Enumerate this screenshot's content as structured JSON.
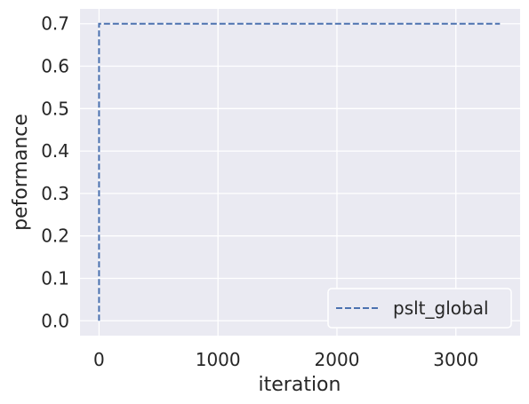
{
  "chart_data": {
    "type": "line",
    "xlabel": "iteration",
    "ylabel": "peformance",
    "xlim": [
      -160,
      3540
    ],
    "ylim": [
      -0.035,
      0.735
    ],
    "xticks": [
      0,
      1000,
      2000,
      3000
    ],
    "yticks": [
      0.0,
      0.1,
      0.2,
      0.3,
      0.4,
      0.5,
      0.6,
      0.7
    ],
    "grid": true,
    "legend_position": "lower-right",
    "series": [
      {
        "name": "pslt_global",
        "color": "#4c72b0",
        "style": "dashed",
        "x": [
          0,
          0,
          3370
        ],
        "y": [
          0.0,
          0.7,
          0.7
        ]
      }
    ]
  },
  "colors": {
    "plot_background": "#eaeaf2",
    "grid": "#ffffff",
    "text": "#262626"
  }
}
